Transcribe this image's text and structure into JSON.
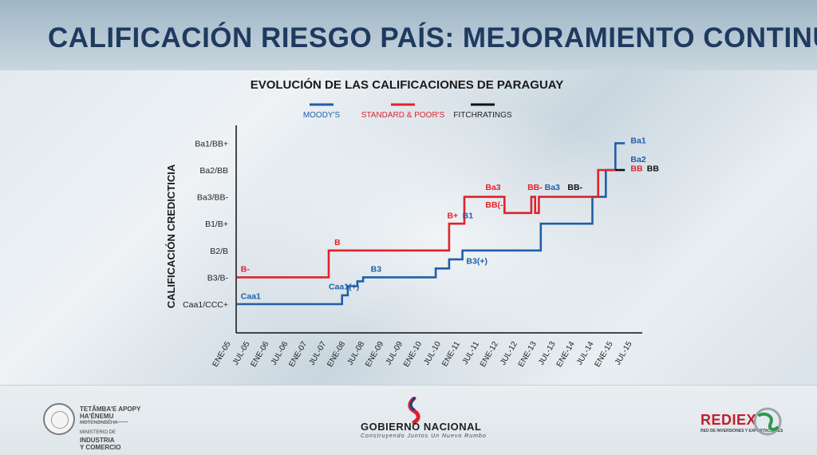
{
  "slide": {
    "title": "CALIFICACIÓN RIESGO PAÍS: MEJORAMIENTO CONTINUO"
  },
  "footer": {
    "ministry_line1": "TETÃMBA'E APOPY",
    "ministry_line2": "HA'ÉNEMU",
    "ministry_line3": "MOTENONDÉHA",
    "ministry_line4": "MINISTERIO DE",
    "ministry_line5": "INDUSTRIA",
    "ministry_line6": "Y COMERCIO",
    "gobierno": "GOBIERNO NACIONAL",
    "gobierno_sub": "Construyendo Juntos Un Nuevo Rumbo",
    "rediex": "REDIEX",
    "rediex_sub": "RED DE INVERSIONES Y EXPORTACIONES"
  },
  "colors": {
    "moodys": "#1f5fa8",
    "sp": "#e0232c",
    "fitch": "#111111",
    "title": "#1f3a5f"
  },
  "chart_data": {
    "type": "line",
    "step": true,
    "title": "EVOLUCIÓN DE LAS CALIFICACIONES DE PARAGUAY",
    "ylabel": "CALIFICACIÓN CREDICTICIA",
    "xlabel": "",
    "legend": [
      "MOODY'S",
      "STANDARD & POOR'S",
      "FITCHRATINGS"
    ],
    "legend_placement": "top",
    "y_categories": [
      "Caa1/CCC+",
      "B3/B-",
      "B2/B",
      "B1/B+",
      "Ba3/BB-",
      "Ba2/BB",
      "Ba1/BB+"
    ],
    "x_categories": [
      "ENE-05",
      "JUL-05",
      "ENE-06",
      "JUL-06",
      "ENE-07",
      "JUL-07",
      "ENE-08",
      "JUL-08",
      "ENE-09",
      "JUL-09",
      "ENE-10",
      "JUL-10",
      "ENE-11",
      "JUL-11",
      "ENE-12",
      "JUL-12",
      "ENE-13",
      "JUL-13",
      "ENE-14",
      "JUL-14",
      "ENE-15",
      "JUL-15"
    ],
    "grid": false,
    "series": [
      {
        "name": "MOODY'S",
        "color": "#1f5fa8",
        "x": [
          0,
          5.5,
          5.5,
          5.8,
          5.8,
          6.3,
          6.3,
          6.6,
          6.6,
          10.4,
          10.4,
          11.1,
          11.1,
          11.8,
          11.8,
          15.9,
          15.9,
          18.6,
          18.6,
          19.3,
          19.3,
          19.8,
          19.8,
          20.3
        ],
        "y": [
          0,
          0,
          0.33,
          0.33,
          0.67,
          0.67,
          0.85,
          0.85,
          1,
          1,
          1.33,
          1.33,
          1.67,
          1.67,
          2,
          2,
          3,
          3,
          4,
          4,
          5,
          5,
          6,
          6
        ]
      },
      {
        "name": "STANDARD & POOR'S",
        "color": "#e0232c",
        "x": [
          0,
          4.8,
          4.8,
          11.1,
          11.1,
          11.9,
          11.9,
          14.0,
          14.0,
          15.4,
          15.4,
          15.6,
          15.6,
          15.8,
          15.8,
          18.9,
          18.9,
          19.8
        ],
        "y": [
          1,
          1,
          2,
          2,
          3,
          3,
          4,
          4,
          3.4,
          3.4,
          4,
          4,
          3.4,
          3.4,
          4,
          4,
          5,
          5
        ]
      },
      {
        "name": "FITCHRATINGS",
        "color": "#111111",
        "x": [
          19.8,
          20.3
        ],
        "y": [
          5,
          5
        ]
      }
    ],
    "annotations": [
      {
        "text": "Caa1",
        "series": "MOODY'S",
        "x": 0.2,
        "y": 0.2
      },
      {
        "text": "B-",
        "series": "STANDARD & POOR'S",
        "x": 0.2,
        "y": 1.2
      },
      {
        "text": "Caa1(+)",
        "series": "MOODY'S",
        "x": 4.8,
        "y": 0.55
      },
      {
        "text": "B",
        "series": "STANDARD & POOR'S",
        "x": 5.1,
        "y": 2.2
      },
      {
        "text": "B3",
        "series": "MOODY'S",
        "x": 7.0,
        "y": 1.2
      },
      {
        "text": "B3(+)",
        "series": "MOODY'S",
        "x": 12.0,
        "y": 1.5
      },
      {
        "text": "B+",
        "series": "STANDARD & POOR'S",
        "x": 11.0,
        "y": 3.2
      },
      {
        "text": "B1",
        "series": "MOODY'S",
        "x": 11.8,
        "y": 3.2
      },
      {
        "text": "Ba3",
        "series": "STANDARD & POOR'S",
        "x": 13.0,
        "y": 4.25
      },
      {
        "text": "BB(-)",
        "series": "STANDARD & POOR'S",
        "x": 13.0,
        "y": 3.6
      },
      {
        "text": "BB-",
        "series": "STANDARD & POOR'S",
        "x": 15.2,
        "y": 4.25
      },
      {
        "text": "Ba3",
        "series": "MOODY'S",
        "x": 16.1,
        "y": 4.25
      },
      {
        "text": "BB-",
        "series": "FITCHRATINGS",
        "x": 17.3,
        "y": 4.25
      },
      {
        "text": "Ba1",
        "series": "MOODY'S",
        "x": 20.6,
        "y": 6.0
      },
      {
        "text": "Ba2",
        "series": "MOODY'S",
        "x": 20.6,
        "y": 5.3
      },
      {
        "text": "BB",
        "series": "STANDARD & POOR'S",
        "x": 20.6,
        "y": 4.95
      },
      {
        "text": "BB",
        "series": "FITCHRATINGS",
        "x": 21.45,
        "y": 4.95
      }
    ]
  }
}
